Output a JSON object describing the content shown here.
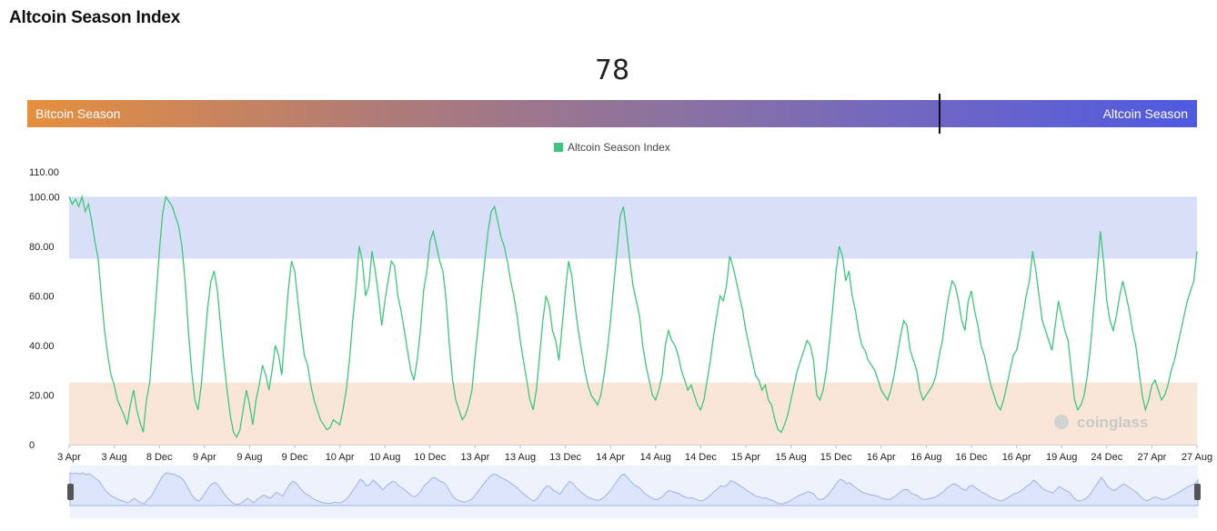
{
  "header": {
    "title": "Altcoin Season Index"
  },
  "gauge": {
    "value": "78",
    "value_num": 78,
    "left_label": "Bitcoin Season",
    "right_label": "Altcoin Season"
  },
  "legend": {
    "label": "Altcoin Season Index",
    "color": "#3cc77a"
  },
  "watermark": "coinglass",
  "colors": {
    "line": "#3cc77a",
    "altcoin_band": "#dadff8",
    "bitcoin_band": "#f9e6d8",
    "navigator_fill": "#dce5fb",
    "navigator_line": "#9db2ea"
  },
  "chart_data": {
    "type": "line",
    "series": [
      {
        "name": "Altcoin Season Index",
        "values": [
          100,
          97,
          99,
          96,
          100,
          94,
          97,
          90,
          82,
          75,
          60,
          46,
          36,
          28,
          24,
          18,
          15,
          12,
          8,
          16,
          22,
          14,
          9,
          5,
          18,
          25,
          42,
          60,
          78,
          93,
          100,
          98,
          96,
          92,
          88,
          80,
          66,
          46,
          30,
          18,
          14,
          24,
          40,
          55,
          66,
          70,
          62,
          48,
          34,
          22,
          12,
          5,
          3,
          6,
          14,
          22,
          16,
          8,
          18,
          24,
          32,
          28,
          22,
          30,
          40,
          36,
          28,
          46,
          62,
          74,
          70,
          58,
          46,
          36,
          32,
          24,
          18,
          14,
          10,
          8,
          6,
          7,
          10,
          9,
          8,
          14,
          22,
          34,
          50,
          63,
          80,
          74,
          60,
          64,
          78,
          70,
          60,
          48,
          58,
          66,
          74,
          72,
          60,
          54,
          46,
          38,
          30,
          26,
          34,
          46,
          62,
          70,
          82,
          86,
          80,
          74,
          70,
          58,
          40,
          26,
          18,
          14,
          10,
          12,
          16,
          22,
          36,
          48,
          62,
          74,
          86,
          94,
          96,
          90,
          84,
          80,
          74,
          66,
          60,
          52,
          42,
          34,
          26,
          18,
          14,
          22,
          36,
          50,
          60,
          56,
          46,
          42,
          34,
          48,
          62,
          74,
          68,
          56,
          46,
          38,
          30,
          24,
          20,
          18,
          16,
          20,
          28,
          38,
          50,
          64,
          78,
          92,
          96,
          86,
          74,
          64,
          58,
          52,
          40,
          32,
          26,
          20,
          18,
          22,
          28,
          40,
          46,
          42,
          40,
          36,
          30,
          26,
          22,
          24,
          20,
          16,
          14,
          18,
          26,
          34,
          44,
          52,
          60,
          58,
          64,
          76,
          72,
          66,
          60,
          54,
          46,
          40,
          34,
          28,
          26,
          22,
          24,
          18,
          16,
          10,
          6,
          5,
          8,
          12,
          18,
          24,
          30,
          34,
          38,
          42,
          40,
          34,
          20,
          18,
          22,
          30,
          42,
          56,
          70,
          80,
          76,
          66,
          70,
          60,
          54,
          46,
          40,
          38,
          34,
          32,
          30,
          26,
          22,
          20,
          18,
          22,
          28,
          36,
          44,
          50,
          48,
          38,
          34,
          30,
          22,
          18,
          20,
          22,
          24,
          28,
          36,
          42,
          52,
          60,
          66,
          64,
          58,
          50,
          46,
          58,
          62,
          54,
          48,
          40,
          36,
          30,
          24,
          20,
          16,
          14,
          18,
          24,
          30,
          36,
          38,
          44,
          52,
          60,
          66,
          78,
          70,
          60,
          50,
          46,
          42,
          38,
          48,
          58,
          52,
          46,
          42,
          30,
          18,
          14,
          16,
          20,
          28,
          40,
          56,
          70,
          86,
          74,
          58,
          50,
          46,
          52,
          60,
          66,
          60,
          54,
          46,
          40,
          30,
          20,
          14,
          18,
          24,
          26,
          22,
          18,
          20,
          24,
          30,
          34,
          40,
          46,
          52,
          58,
          62,
          66,
          78
        ]
      }
    ],
    "x_tick_labels": [
      "3 Apr",
      "3 Aug",
      "8 Dec",
      "9 Apr",
      "9 Aug",
      "9 Dec",
      "10 Apr",
      "10 Aug",
      "10 Dec",
      "13 Apr",
      "13 Aug",
      "13 Dec",
      "14 Apr",
      "14 Aug",
      "14 Dec",
      "15 Apr",
      "15 Aug",
      "15 Dec",
      "16 Apr",
      "16 Aug",
      "16 Dec",
      "16 Apr",
      "19 Aug",
      "24 Dec",
      "27 Apr",
      "27 Aug"
    ],
    "y_tick_labels": [
      "0",
      "20.00",
      "40.00",
      "60.00",
      "80.00",
      "100.00",
      "110.00"
    ],
    "ylim": [
      0,
      110
    ],
    "bands": [
      {
        "from": 75,
        "to": 100,
        "label": "Altcoin Season"
      },
      {
        "from": 0,
        "to": 25,
        "label": "Bitcoin Season"
      }
    ],
    "title": "Altcoin Season Index",
    "xlabel": "",
    "ylabel": "",
    "grid": false,
    "legend_position": "top-center"
  }
}
